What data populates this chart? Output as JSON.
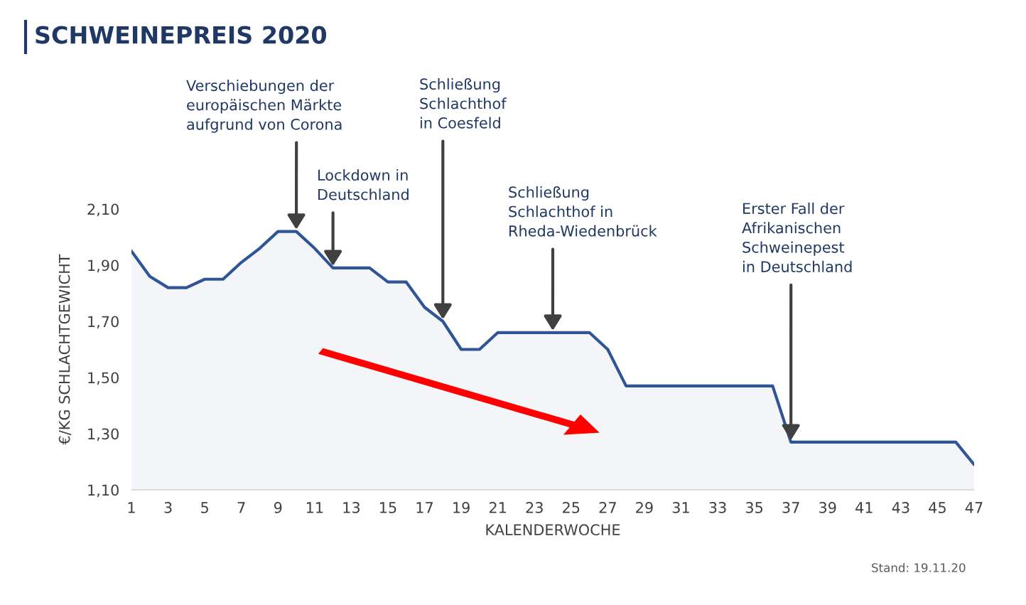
{
  "chart_data": {
    "type": "area",
    "title": "SCHWEINEPREIS 2020",
    "xlabel": "KALENDERWOCHE",
    "ylabel": "€/KG SCHLACHTGEWICHT",
    "x": [
      1,
      2,
      3,
      4,
      5,
      6,
      7,
      8,
      9,
      10,
      11,
      12,
      13,
      14,
      15,
      16,
      17,
      18,
      19,
      20,
      21,
      22,
      23,
      24,
      25,
      26,
      27,
      28,
      29,
      30,
      31,
      32,
      33,
      34,
      35,
      36,
      37,
      38,
      39,
      40,
      41,
      42,
      43,
      44,
      45,
      46,
      47
    ],
    "series": [
      {
        "color": "#2f5597",
        "values": [
          1.95,
          1.86,
          1.82,
          1.82,
          1.85,
          1.85,
          1.91,
          1.96,
          2.02,
          2.02,
          1.96,
          1.89,
          1.89,
          1.89,
          1.84,
          1.84,
          1.75,
          1.7,
          1.6,
          1.6,
          1.66,
          1.66,
          1.66,
          1.66,
          1.66,
          1.66,
          1.6,
          1.47,
          1.47,
          1.47,
          1.47,
          1.47,
          1.47,
          1.47,
          1.47,
          1.47,
          1.27,
          1.27,
          1.27,
          1.27,
          1.27,
          1.27,
          1.27,
          1.27,
          1.27,
          1.27,
          1.19
        ]
      }
    ],
    "xlim": [
      1,
      47
    ],
    "xticks": [
      1,
      3,
      5,
      7,
      9,
      11,
      13,
      15,
      17,
      19,
      21,
      23,
      25,
      27,
      29,
      31,
      33,
      35,
      37,
      39,
      41,
      43,
      45,
      47
    ],
    "ylim": [
      1.1,
      2.1
    ],
    "yticks": [
      {
        "value": 1.1,
        "label": "1,10"
      },
      {
        "value": 1.3,
        "label": "1,30"
      },
      {
        "value": 1.5,
        "label": "1,50"
      },
      {
        "value": 1.7,
        "label": "1,70"
      },
      {
        "value": 1.9,
        "label": "1,90"
      },
      {
        "value": 2.1,
        "label": "2,10"
      }
    ],
    "annotations": [
      {
        "text": "Verschiebungen der\neuropäischen Märkte\naufgrund von Corona",
        "x": 10,
        "y": 2.02
      },
      {
        "text": "Lockdown in\nDeutschland",
        "x": 12,
        "y": 1.89
      },
      {
        "text": "Schließung\nSchlachthof\nin Coesfeld",
        "x": 18,
        "y": 1.7
      },
      {
        "text": "Schließung\nSchlachthof in\nRheda-Wiedenbrück",
        "x": 24,
        "y": 1.66
      },
      {
        "text": "Erster Fall der\nAfrikanischen\nSchweinepest\nin Deutschland",
        "x": 37,
        "y": 1.27
      },
      "Stand: 19.11.20"
    ]
  }
}
